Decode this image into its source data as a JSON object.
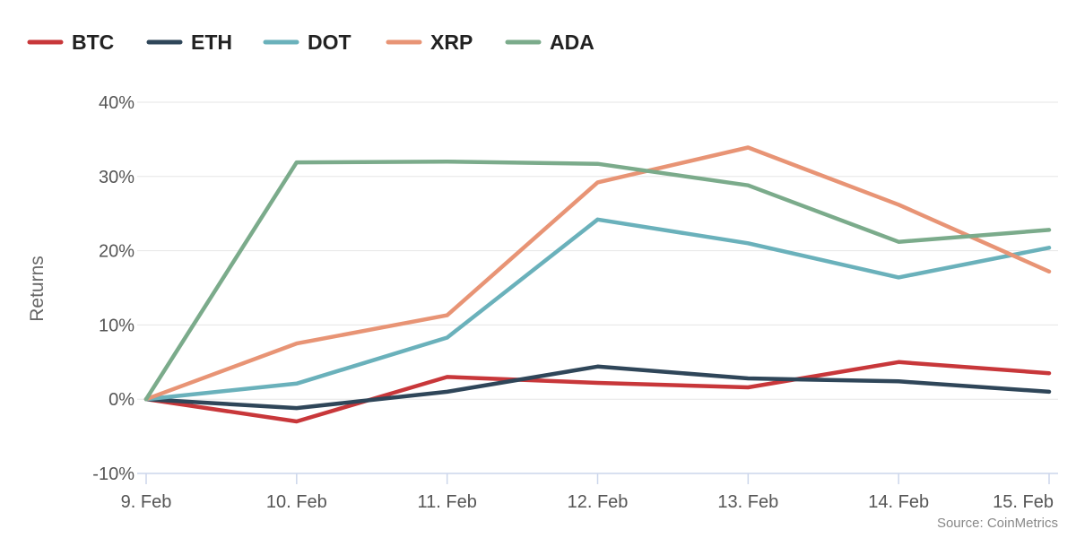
{
  "chart_data": {
    "type": "line",
    "title": "",
    "xlabel": "",
    "ylabel": "Returns",
    "categories": [
      "9. Feb",
      "10. Feb",
      "11. Feb",
      "12. Feb",
      "13. Feb",
      "14. Feb",
      "15. Feb"
    ],
    "ylim": [
      -10,
      40
    ],
    "yticks": [
      -10,
      0,
      10,
      20,
      30,
      40
    ],
    "ytick_labels": [
      "-10%",
      "0%",
      "10%",
      "20%",
      "30%",
      "40%"
    ],
    "grid": true,
    "legend_position": "top-left",
    "source": "Source: CoinMetrics",
    "series": [
      {
        "name": "BTC",
        "color": "#c8373a",
        "values": [
          0,
          -3.0,
          3.0,
          2.2,
          1.6,
          5.0,
          3.5
        ]
      },
      {
        "name": "ETH",
        "color": "#2f4659",
        "values": [
          0,
          -1.2,
          1.0,
          4.4,
          2.8,
          2.4,
          1.0
        ]
      },
      {
        "name": "DOT",
        "color": "#6ab1bb",
        "values": [
          0,
          2.1,
          8.3,
          24.2,
          21.0,
          16.4,
          20.4
        ]
      },
      {
        "name": "XRP",
        "color": "#e89475",
        "values": [
          0,
          7.5,
          11.3,
          29.2,
          33.9,
          26.2,
          17.2
        ]
      },
      {
        "name": "ADA",
        "color": "#7bab8b",
        "values": [
          0,
          31.9,
          32.0,
          31.7,
          28.8,
          21.2,
          22.8
        ]
      }
    ]
  }
}
